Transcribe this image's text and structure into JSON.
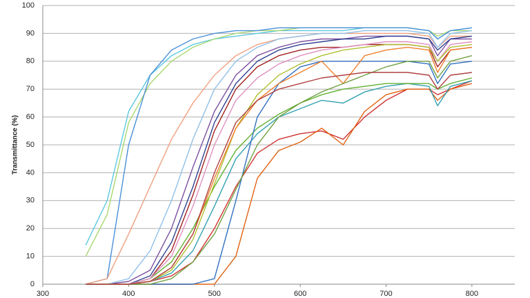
{
  "chart_data": {
    "type": "line",
    "y_label": "Transmittance (%)",
    "x": [
      350,
      375,
      400,
      425,
      450,
      475,
      500,
      525,
      550,
      575,
      600,
      625,
      650,
      675,
      700,
      725,
      750,
      760,
      775,
      800
    ],
    "xlim": [
      300,
      850
    ],
    "xticks": [
      300,
      400,
      500,
      600,
      700,
      800
    ],
    "ylim": [
      0,
      100
    ],
    "yticks": [
      0,
      10,
      20,
      30,
      40,
      50,
      60,
      70,
      80,
      90,
      100
    ],
    "grid": true,
    "series": [
      {
        "color": "#5bc8e0",
        "values": [
          14,
          30,
          62,
          75,
          82,
          86,
          88,
          89,
          90,
          91,
          91,
          91,
          91,
          92,
          92,
          92,
          91,
          88,
          91,
          92
        ]
      },
      {
        "color": "#a8d86e",
        "values": [
          10,
          25,
          58,
          72,
          80,
          85,
          88,
          90,
          91,
          91,
          92,
          92,
          92,
          92,
          92,
          92,
          91,
          89,
          91,
          91
        ]
      },
      {
        "color": "#4a90d9",
        "values": [
          0,
          2,
          50,
          75,
          84,
          88,
          90,
          91,
          91,
          92,
          92,
          92,
          92,
          92,
          92,
          92,
          91,
          88,
          91,
          92
        ]
      },
      {
        "color": "#f0a080",
        "values": [
          0,
          2,
          18,
          35,
          52,
          65,
          75,
          82,
          86,
          88,
          89,
          90,
          90,
          90,
          90,
          90,
          89,
          85,
          89,
          89
        ]
      },
      {
        "color": "#7b4fa0",
        "values": [
          0,
          0,
          1,
          5,
          20,
          42,
          62,
          75,
          82,
          85,
          87,
          88,
          88,
          89,
          89,
          89,
          88,
          82,
          88,
          88
        ]
      },
      {
        "color": "#a02020",
        "values": [
          0,
          0,
          0,
          2,
          12,
          32,
          55,
          70,
          78,
          82,
          84,
          85,
          85,
          86,
          86,
          86,
          85,
          78,
          84,
          85
        ]
      },
      {
        "color": "#d03030",
        "values": [
          0,
          0,
          0,
          1,
          3,
          8,
          20,
          35,
          47,
          52,
          54,
          55,
          52,
          60,
          66,
          70,
          70,
          68,
          70,
          73
        ]
      },
      {
        "color": "#e06010",
        "values": [
          0,
          0,
          0,
          0,
          0,
          0,
          0,
          10,
          38,
          48,
          51,
          56,
          50,
          62,
          68,
          70,
          70,
          66,
          70,
          72
        ]
      },
      {
        "color": "#30a0b0",
        "values": [
          0,
          0,
          0,
          1,
          4,
          12,
          28,
          45,
          54,
          60,
          63,
          66,
          65,
          69,
          71,
          72,
          71,
          64,
          71,
          73
        ]
      },
      {
        "color": "#60b030",
        "values": [
          0,
          0,
          0,
          2,
          8,
          20,
          35,
          48,
          56,
          61,
          65,
          68,
          70,
          71,
          72,
          72,
          72,
          70,
          72,
          74
        ]
      },
      {
        "color": "#3070c0",
        "values": [
          0,
          0,
          0,
          0,
          0,
          0,
          2,
          30,
          60,
          72,
          78,
          80,
          80,
          80,
          80,
          80,
          79,
          72,
          79,
          80
        ]
      },
      {
        "color": "#304090",
        "values": [
          0,
          0,
          0,
          3,
          15,
          35,
          58,
          72,
          80,
          84,
          86,
          87,
          88,
          88,
          89,
          89,
          88,
          84,
          88,
          89
        ]
      },
      {
        "color": "#e090c0",
        "values": [
          0,
          0,
          0,
          2,
          10,
          28,
          50,
          66,
          74,
          79,
          82,
          84,
          85,
          86,
          87,
          87,
          86,
          80,
          86,
          87
        ]
      },
      {
        "color": "#b0c030",
        "values": [
          0,
          0,
          0,
          1,
          5,
          16,
          36,
          56,
          68,
          75,
          79,
          82,
          84,
          85,
          86,
          86,
          85,
          80,
          85,
          86
        ]
      },
      {
        "color": "#f08030",
        "values": [
          0,
          0,
          0,
          1,
          6,
          18,
          38,
          56,
          66,
          72,
          76,
          80,
          72,
          82,
          84,
          85,
          84,
          76,
          84,
          85
        ]
      },
      {
        "color": "#90c0e8",
        "values": [
          0,
          0,
          2,
          12,
          30,
          52,
          70,
          80,
          85,
          88,
          89,
          90,
          90,
          91,
          91,
          91,
          90,
          85,
          90,
          91
        ]
      },
      {
        "color": "#70a040",
        "values": [
          0,
          0,
          0,
          0,
          2,
          8,
          18,
          34,
          50,
          60,
          65,
          69,
          72,
          75,
          78,
          80,
          80,
          74,
          80,
          82
        ]
      },
      {
        "color": "#b04040",
        "values": [
          0,
          0,
          0,
          1,
          6,
          18,
          40,
          58,
          66,
          70,
          72,
          74,
          75,
          76,
          76,
          76,
          75,
          70,
          75,
          76
        ]
      }
    ]
  }
}
